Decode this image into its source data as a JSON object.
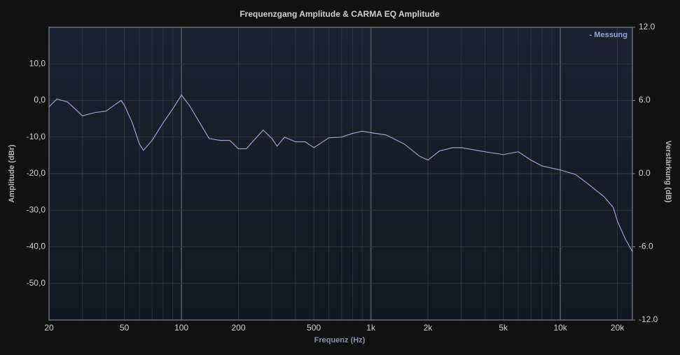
{
  "chart_data": {
    "type": "line",
    "title": "Frequenzgang Amplitude & CARMA EQ Amplitude",
    "x_label": "Frequenz (Hz)",
    "y_label": "Amplitude (dBr)",
    "y2_label": "Verstärkung (dB)",
    "x_scale": "log",
    "grid": true,
    "legend": "top-right",
    "x": [
      20,
      22,
      25,
      28,
      30,
      35,
      40,
      45,
      48,
      50,
      55,
      60,
      63,
      70,
      80,
      90,
      100,
      110,
      125,
      140,
      160,
      180,
      200,
      220,
      250,
      270,
      300,
      320,
      350,
      400,
      450,
      500,
      600,
      700,
      800,
      900,
      1000,
      1200,
      1500,
      1800,
      2000,
      2300,
      2700,
      3000,
      4000,
      5000,
      6000,
      7000,
      8000,
      10000,
      12000,
      14000,
      17000,
      19000,
      20000,
      22000,
      24000
    ],
    "series": [
      {
        "name": "- Messung",
        "color": "#9aa0d4",
        "values": [
          -1.7,
          0.4,
          -0.4,
          -2.7,
          -4.2,
          -3.3,
          -2.9,
          -1,
          0,
          -1.3,
          -6.1,
          -11.9,
          -13.6,
          -10.9,
          -6.1,
          -2.3,
          1.5,
          -1.3,
          -6.1,
          -10.4,
          -10.9,
          -10.9,
          -13.2,
          -13.2,
          -10,
          -8.1,
          -10.4,
          -12.5,
          -10,
          -11.3,
          -11.3,
          -12.9,
          -10.2,
          -10,
          -9,
          -8.4,
          -8.8,
          -9.4,
          -11.9,
          -15.2,
          -16.3,
          -13.8,
          -12.9,
          -12.9,
          -14,
          -14.8,
          -14,
          -16.3,
          -17.9,
          -19,
          -20.2,
          -22.8,
          -26.3,
          -29.2,
          -33,
          -37.8,
          -41.3
        ]
      }
    ],
    "xlim": [
      20,
      24000
    ],
    "xticks": [
      20,
      50,
      100,
      200,
      500,
      {
        "value": 1000,
        "label": "1k"
      },
      {
        "value": 2000,
        "label": "2k"
      },
      {
        "value": 5000,
        "label": "5k"
      },
      {
        "value": 10000,
        "label": "10k"
      },
      {
        "value": 20000,
        "label": "20k"
      }
    ],
    "minor_xticks": [
      30,
      40,
      60,
      70,
      80,
      90,
      300,
      400,
      600,
      700,
      800,
      900,
      3000,
      4000,
      6000,
      7000,
      8000,
      9000
    ],
    "ylim": [
      -60,
      20
    ],
    "yticks": [
      {
        "value": 10,
        "label": "10,0"
      },
      {
        "value": 0,
        "label": "0,0"
      },
      {
        "value": -10,
        "label": "-10,0"
      },
      {
        "value": -20,
        "label": "-20,0"
      },
      {
        "value": -30,
        "label": "-30,0"
      },
      {
        "value": -40,
        "label": "-40,0"
      },
      {
        "value": -50,
        "label": "-50,0"
      }
    ],
    "y2lim": [
      -12,
      12
    ],
    "y2ticks": [
      {
        "value": 12,
        "label": "12.0"
      },
      {
        "value": 6,
        "label": "6.0"
      },
      {
        "value": 0,
        "label": "0.0"
      },
      {
        "value": -6,
        "label": "-6.0"
      },
      {
        "value": -12,
        "label": "-12.0"
      }
    ]
  }
}
